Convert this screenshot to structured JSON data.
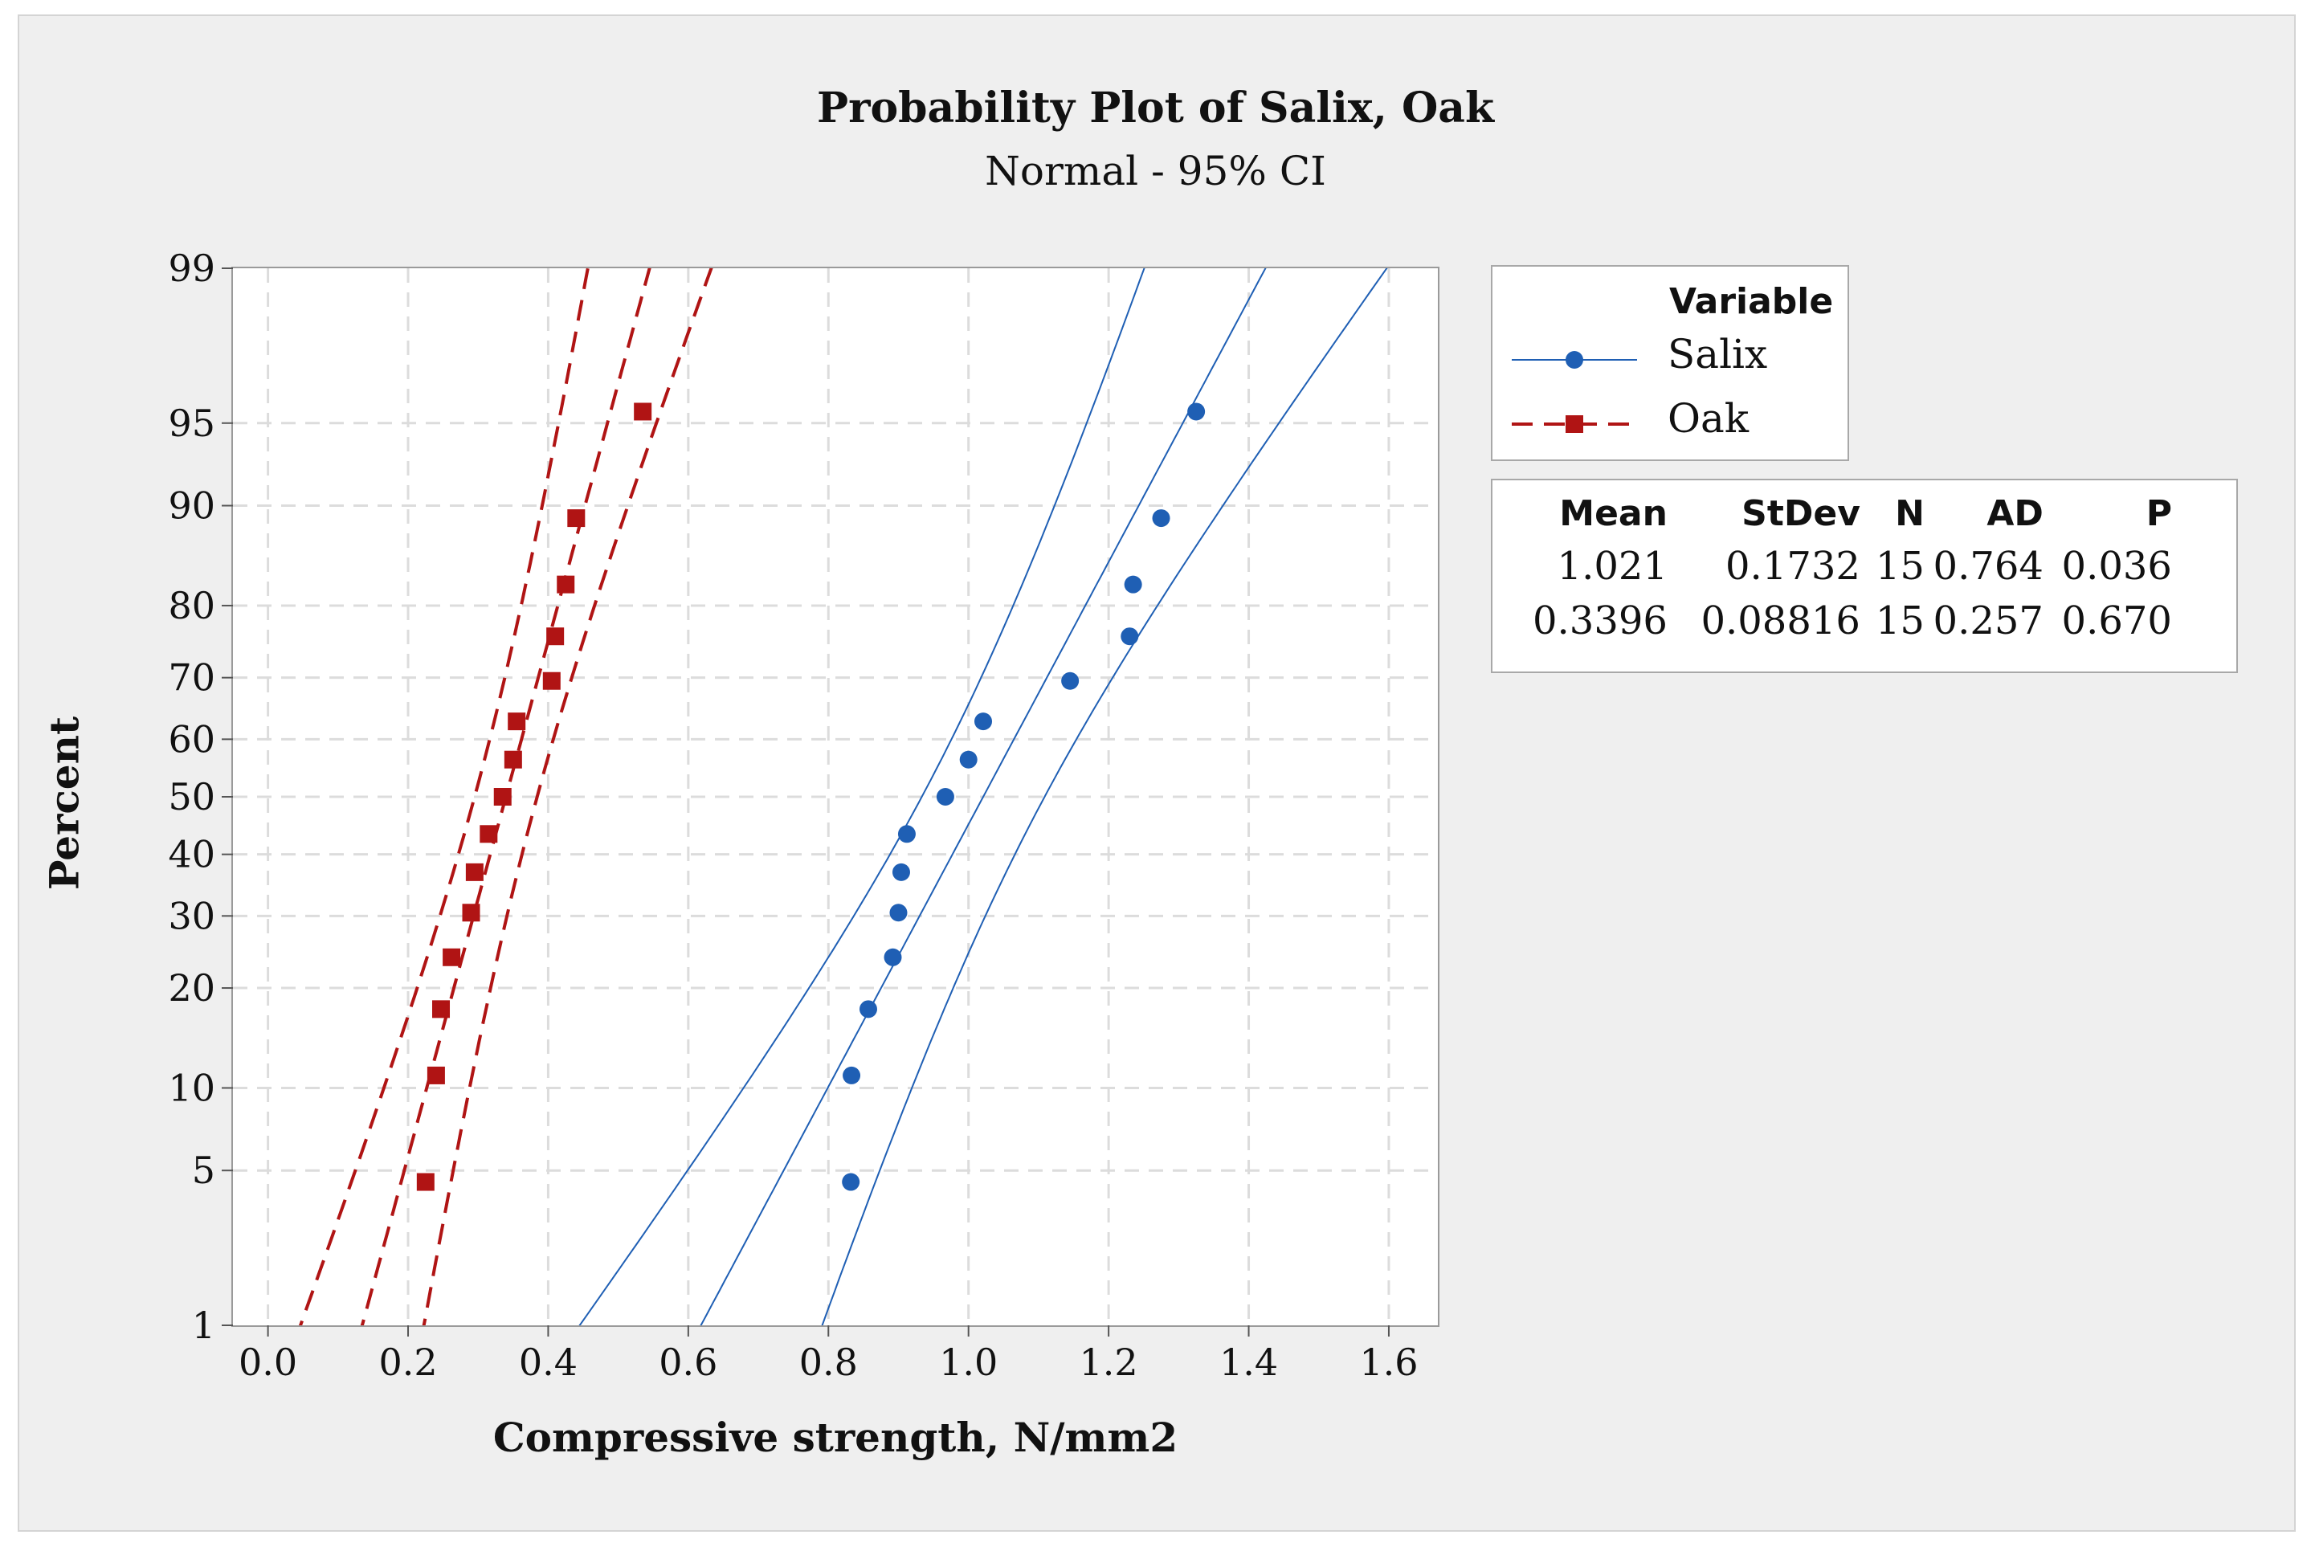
{
  "chart_data": {
    "type": "scatter",
    "title": "Probability Plot of Salix, Oak",
    "subtitle": "Normal - 95% CI",
    "xlabel": "Compressive strength, N/mm2",
    "ylabel": "Percent",
    "xlim": [
      -0.05,
      1.67
    ],
    "ylim_percent": [
      1,
      99
    ],
    "x_ticks": [
      "0.0",
      "0.2",
      "0.4",
      "0.6",
      "0.8",
      "1.0",
      "1.2",
      "1.4",
      "1.6"
    ],
    "x_tick_values": [
      0.0,
      0.2,
      0.4,
      0.6,
      0.8,
      1.0,
      1.2,
      1.4,
      1.6
    ],
    "y_ticks": [
      "1",
      "5",
      "10",
      "20",
      "30",
      "40",
      "50",
      "60",
      "70",
      "80",
      "90",
      "95",
      "99"
    ],
    "y_tick_values": [
      1,
      5,
      10,
      20,
      30,
      40,
      50,
      60,
      70,
      80,
      90,
      95,
      99
    ],
    "grid": true,
    "legend_title": "Variable",
    "legend_position": "right",
    "series": [
      {
        "name": "Salix",
        "color": "#1f5fb4",
        "marker": "circle",
        "line_style": "solid",
        "mean": 1.021,
        "stdev": 0.1732,
        "x": [
          0.832,
          0.833,
          0.857,
          0.892,
          0.9,
          0.904,
          0.912,
          0.967,
          1.0,
          1.021,
          1.145,
          1.23,
          1.235,
          1.275,
          1.325
        ],
        "percent": [
          4.5,
          11.0,
          17.5,
          24.0,
          30.5,
          37.0,
          43.5,
          50.0,
          56.5,
          63.0,
          69.5,
          76.0,
          82.5,
          89.0,
          95.5
        ]
      },
      {
        "name": "Oak",
        "color": "#b01414",
        "marker": "square",
        "line_style": "dashed",
        "mean": 0.3396,
        "stdev": 0.08816,
        "x": [
          0.225,
          0.24,
          0.247,
          0.262,
          0.29,
          0.295,
          0.315,
          0.335,
          0.35,
          0.355,
          0.405,
          0.41,
          0.425,
          0.44,
          0.535
        ],
        "percent": [
          4.5,
          11.0,
          17.5,
          24.0,
          30.5,
          37.0,
          43.5,
          50.0,
          56.5,
          63.0,
          69.5,
          76.0,
          82.5,
          89.0,
          95.5
        ]
      }
    ]
  },
  "stats_table": {
    "headers": [
      "Mean",
      "StDev",
      "N",
      "AD",
      "P"
    ],
    "rows": [
      [
        "1.021",
        "0.1732",
        "15",
        "0.764",
        "0.036"
      ],
      [
        "0.3396",
        "0.08816",
        "15",
        "0.257",
        "0.670"
      ]
    ]
  }
}
